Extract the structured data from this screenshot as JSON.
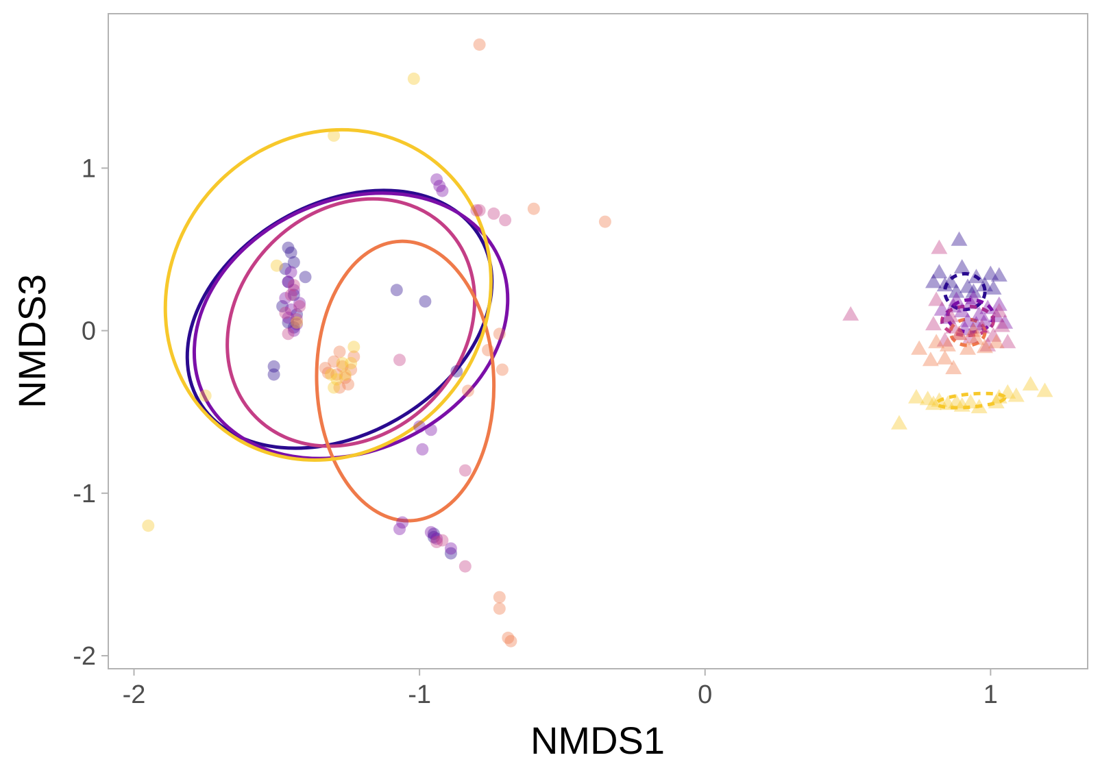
{
  "chart_data": {
    "type": "scatter",
    "title": "",
    "xlabel": "NMDS1",
    "ylabel": "NMDS3",
    "xlim": [
      -2.09,
      1.34
    ],
    "ylim": [
      -2.08,
      1.95
    ],
    "x_ticks": [
      -2,
      -1,
      0,
      1
    ],
    "x_tick_labels": [
      "-2",
      "-1",
      "0",
      "1"
    ],
    "y_ticks": [
      -2,
      -1,
      0,
      1
    ],
    "y_tick_labels": [
      "-2",
      "-1",
      "0",
      "1"
    ],
    "grid": false,
    "legend": "none",
    "colors": [
      "#2a0a8f",
      "#7b0fa8",
      "#c43e86",
      "#ef7a4a",
      "#f7c82b"
    ],
    "groups": [
      {
        "color": "#2a0a8f",
        "circles": [
          [
            -1.46,
            0.51
          ],
          [
            -1.45,
            0.48
          ],
          [
            -1.44,
            0.42
          ],
          [
            -1.47,
            0.38
          ],
          [
            -1.4,
            0.33
          ],
          [
            -1.46,
            0.3
          ],
          [
            -1.44,
            0.22
          ],
          [
            -1.48,
            0.15
          ],
          [
            -1.43,
            0.1
          ],
          [
            -1.46,
            0.05
          ],
          [
            -1.44,
            0.02
          ],
          [
            -1.51,
            -0.22
          ],
          [
            -1.51,
            -0.27
          ],
          [
            -1.08,
            0.25
          ],
          [
            -0.98,
            0.18
          ],
          [
            -0.95,
            -1.25
          ],
          [
            -0.95,
            -1.27
          ],
          [
            -0.89,
            -1.37
          ],
          [
            -0.87,
            -0.25
          ]
        ],
        "triangles": [
          [
            0.89,
            0.56
          ],
          [
            0.82,
            0.36
          ],
          [
            0.9,
            0.39
          ],
          [
            0.86,
            0.3
          ],
          [
            0.95,
            0.33
          ],
          [
            1.0,
            0.35
          ],
          [
            0.92,
            0.27
          ],
          [
            0.8,
            0.3
          ],
          [
            1.03,
            0.34
          ],
          [
            0.98,
            0.28
          ],
          [
            0.88,
            0.24
          ],
          [
            0.94,
            0.24
          ],
          [
            1.01,
            0.26
          ],
          [
            0.84,
            0.28
          ]
        ],
        "ellipse": {
          "cx": -1.28,
          "cy": 0.07,
          "rx": 0.57,
          "ry": 0.71,
          "angle": -30
        },
        "tri_ellipse": {
          "cx": 0.91,
          "cy": 0.24,
          "rx": 0.07,
          "ry": 0.11,
          "angle": 0
        }
      },
      {
        "color": "#7b0fa8",
        "circles": [
          [
            -0.94,
            0.93
          ],
          [
            -0.93,
            0.89
          ],
          [
            -0.92,
            0.86
          ],
          [
            -1.45,
            0.36
          ],
          [
            -1.46,
            0.3
          ],
          [
            -1.44,
            0.25
          ],
          [
            -1.47,
            0.2
          ],
          [
            -1.42,
            0.17
          ],
          [
            -1.45,
            0.13
          ],
          [
            -1.46,
            0.08
          ],
          [
            -1.43,
            0.04
          ],
          [
            -1.44,
            0.0
          ],
          [
            -0.96,
            -0.61
          ],
          [
            -1.0,
            -0.59
          ],
          [
            -0.99,
            -0.73
          ],
          [
            -1.06,
            -1.18
          ],
          [
            -1.07,
            -1.22
          ],
          [
            -0.96,
            -1.24
          ],
          [
            -0.94,
            -1.28
          ],
          [
            -0.89,
            -1.34
          ]
        ],
        "triangles": [
          [
            0.87,
            0.15
          ],
          [
            0.9,
            0.12
          ],
          [
            0.93,
            0.17
          ],
          [
            0.96,
            0.1
          ],
          [
            0.99,
            0.14
          ],
          [
            1.02,
            0.09
          ],
          [
            0.85,
            0.08
          ],
          [
            0.92,
            0.06
          ],
          [
            0.95,
            0.04
          ],
          [
            0.98,
            0.06
          ],
          [
            1.03,
            0.16
          ],
          [
            0.88,
            0.19
          ],
          [
            0.83,
            0.13
          ],
          [
            1.05,
            0.05
          ],
          [
            0.94,
            0.2
          ],
          [
            0.91,
            0.01
          ]
        ],
        "ellipse": {
          "cx": -1.24,
          "cy": 0.03,
          "rx": 0.57,
          "ry": 0.77,
          "angle": -25
        },
        "tri_ellipse": {
          "cx": 0.93,
          "cy": 0.09,
          "rx": 0.08,
          "ry": 0.1,
          "angle": 0
        }
      },
      {
        "color": "#c43e86",
        "circles": [
          [
            -0.79,
            0.74
          ],
          [
            -0.8,
            0.74
          ],
          [
            -0.74,
            0.72
          ],
          [
            -0.7,
            0.68
          ],
          [
            -1.44,
            0.28
          ],
          [
            -1.45,
            0.22
          ],
          [
            -1.42,
            0.15
          ],
          [
            -1.47,
            0.11
          ],
          [
            -1.43,
            0.07
          ],
          [
            -1.46,
            -0.02
          ],
          [
            -1.07,
            -0.18
          ],
          [
            -0.84,
            -0.86
          ],
          [
            -0.84,
            -1.45
          ],
          [
            -0.94,
            -1.3
          ],
          [
            -0.92,
            -1.29
          ]
        ],
        "triangles": [
          [
            0.82,
            0.51
          ],
          [
            0.51,
            0.1
          ],
          [
            0.81,
            0.19
          ],
          [
            0.86,
            0.09
          ],
          [
            0.97,
            0.02
          ],
          [
            1.01,
            -0.03
          ],
          [
            1.04,
            0.03
          ],
          [
            0.89,
            -0.02
          ],
          [
            0.8,
            0.04
          ],
          [
            0.93,
            -0.04
          ],
          [
            1.06,
            -0.07
          ],
          [
            0.84,
            -0.06
          ],
          [
            0.99,
            -0.09
          ],
          [
            0.87,
            0.02
          ],
          [
            1.03,
            0.12
          ]
        ],
        "ellipse": {
          "cx": -1.24,
          "cy": 0.05,
          "rx": 0.47,
          "ry": 0.69,
          "angle": -45
        },
        "tri_ellipse": {
          "cx": 0.92,
          "cy": 0.06,
          "rx": 0.09,
          "ry": 0.09,
          "angle": 0
        }
      },
      {
        "color": "#ef7a4a",
        "circles": [
          [
            -0.79,
            1.76
          ],
          [
            -0.6,
            0.75
          ],
          [
            -0.35,
            0.67
          ],
          [
            -1.3,
            -0.19
          ],
          [
            -1.27,
            -0.22
          ],
          [
            -1.24,
            -0.24
          ],
          [
            -1.29,
            -0.27
          ],
          [
            -1.26,
            -0.29
          ],
          [
            -1.32,
            -0.26
          ],
          [
            -1.25,
            -0.33
          ],
          [
            -1.28,
            -0.35
          ],
          [
            -1.23,
            -0.16
          ],
          [
            -1.33,
            -0.23
          ],
          [
            -1.28,
            -0.13
          ],
          [
            -0.76,
            -0.12
          ],
          [
            -0.72,
            -0.02
          ],
          [
            -0.71,
            -0.24
          ],
          [
            -0.83,
            -0.37
          ],
          [
            -0.72,
            -1.64
          ],
          [
            -0.72,
            -1.71
          ],
          [
            -0.69,
            -1.89
          ],
          [
            -0.68,
            -1.91
          ]
        ],
        "triangles": [
          [
            0.75,
            -0.11
          ],
          [
            0.81,
            -0.07
          ],
          [
            0.84,
            -0.17
          ],
          [
            0.79,
            -0.18
          ],
          [
            0.87,
            -0.23
          ],
          [
            0.92,
            -0.11
          ],
          [
            0.95,
            -0.05
          ],
          [
            0.89,
            -0.02
          ],
          [
            0.98,
            -0.1
          ],
          [
            1.02,
            -0.07
          ],
          [
            0.94,
            0.0
          ],
          [
            0.85,
            -0.09
          ]
        ],
        "ellipse": {
          "cx": -1.05,
          "cy": -0.31,
          "rx": 0.31,
          "ry": 0.86,
          "angle": -2
        },
        "tri_ellipse": {
          "cx": 0.92,
          "cy": -0.01,
          "rx": 0.06,
          "ry": 0.08,
          "angle": 0
        }
      },
      {
        "color": "#f7c82b",
        "circles": [
          [
            -1.02,
            1.55
          ],
          [
            -1.3,
            1.2
          ],
          [
            -1.75,
            -0.4
          ],
          [
            -1.95,
            -1.2
          ],
          [
            -1.43,
            0.05
          ],
          [
            -1.5,
            0.4
          ],
          [
            -1.27,
            -0.2
          ],
          [
            -1.24,
            -0.2
          ],
          [
            -1.29,
            -0.3
          ],
          [
            -1.26,
            -0.27
          ],
          [
            -1.23,
            -0.1
          ],
          [
            -1.3,
            -0.35
          ],
          [
            -1.31,
            -0.27
          ]
        ],
        "triangles": [
          [
            0.68,
            -0.57
          ],
          [
            0.74,
            -0.41
          ],
          [
            0.78,
            -0.42
          ],
          [
            0.82,
            -0.43
          ],
          [
            0.85,
            -0.45
          ],
          [
            0.88,
            -0.44
          ],
          [
            0.9,
            -0.46
          ],
          [
            0.93,
            -0.44
          ],
          [
            0.96,
            -0.47
          ],
          [
            1.03,
            -0.41
          ],
          [
            1.06,
            -0.38
          ],
          [
            1.09,
            -0.4
          ],
          [
            1.14,
            -0.33
          ],
          [
            1.19,
            -0.37
          ],
          [
            0.8,
            -0.45
          ],
          [
            1.02,
            -0.44
          ]
        ],
        "ellipse": {
          "cx": -1.32,
          "cy": 0.22,
          "rx": 0.55,
          "ry": 1.05,
          "angle": 40
        },
        "tri_ellipse": {
          "cx": 0.93,
          "cy": -0.43,
          "rx": 0.12,
          "ry": 0.04,
          "angle": -5
        }
      }
    ]
  }
}
